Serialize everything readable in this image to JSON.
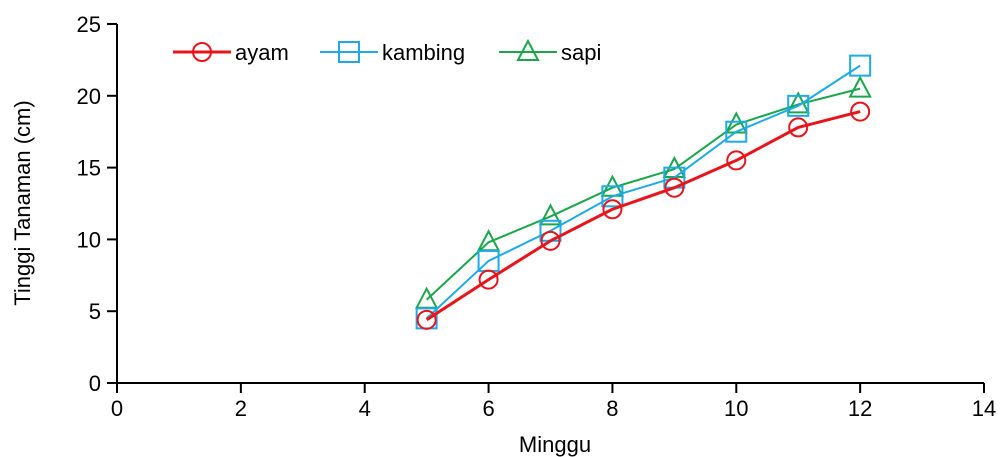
{
  "chart_data": {
    "type": "line",
    "xlabel": "Minggu",
    "ylabel": "Tinggi Tanaman (cm)",
    "xlim": [
      0,
      14
    ],
    "ylim": [
      0,
      25
    ],
    "xticks": [
      0,
      2,
      4,
      6,
      8,
      10,
      12,
      14
    ],
    "yticks": [
      0,
      5,
      10,
      15,
      20,
      25
    ],
    "x": [
      5,
      6,
      7,
      8,
      9,
      10,
      11,
      12
    ],
    "legend_position": "top-left",
    "grid": false,
    "series": [
      {
        "name": "ayam",
        "color": "#e8141c",
        "marker": "circle",
        "values": [
          4.4,
          7.2,
          9.9,
          12.1,
          13.6,
          15.5,
          17.8,
          18.9
        ]
      },
      {
        "name": "kambing",
        "color": "#1eaae6",
        "marker": "square",
        "values": [
          4.5,
          8.5,
          10.6,
          13.0,
          14.3,
          17.5,
          19.3,
          22.1
        ]
      },
      {
        "name": "sapi",
        "color": "#1aa64a",
        "marker": "triangle",
        "values": [
          5.8,
          9.8,
          11.6,
          13.6,
          14.9,
          18.0,
          19.4,
          20.5
        ]
      }
    ]
  }
}
